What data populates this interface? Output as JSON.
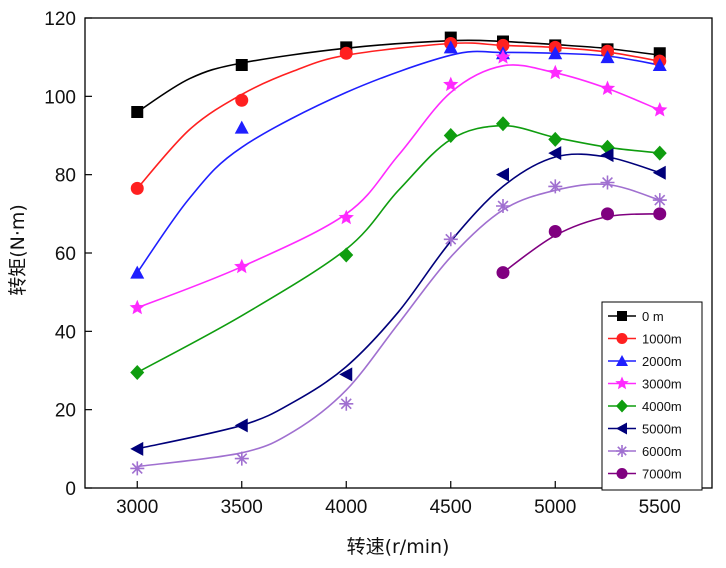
{
  "chart_data": {
    "type": "line",
    "title": "",
    "xlabel": "转速(r/min)",
    "ylabel": "转矩(N·m)",
    "xlim": [
      2750,
      5750
    ],
    "ylim": [
      0,
      120
    ],
    "xticks": [
      3000,
      3500,
      4000,
      4500,
      5000,
      5500
    ],
    "yticks": [
      0,
      20,
      40,
      60,
      80,
      100,
      120
    ],
    "x_tick_labels": [
      "3000",
      "3500",
      "4000",
      "4500",
      "5000",
      "5500"
    ],
    "y_tick_labels": [
      "0",
      "20",
      "40",
      "60",
      "80",
      "100",
      "120"
    ],
    "legend_position": "bottom-right",
    "series": [
      {
        "name": "0 m",
        "color": "#000000",
        "marker": "square",
        "points": [
          [
            3000,
            96
          ],
          [
            3500,
            108
          ],
          [
            4000,
            112.5
          ],
          [
            4500,
            115
          ],
          [
            4750,
            114
          ],
          [
            5000,
            113
          ],
          [
            5250,
            112
          ],
          [
            5500,
            111
          ]
        ],
        "curve": [
          [
            3000,
            96
          ],
          [
            3250,
            104.5
          ],
          [
            3500,
            108.5
          ],
          [
            4000,
            112.3
          ],
          [
            4500,
            114.2
          ],
          [
            4750,
            114
          ],
          [
            5000,
            113.2
          ],
          [
            5250,
            112.2
          ],
          [
            5500,
            110.5
          ]
        ]
      },
      {
        "name": "1000m",
        "color": "#ff2020",
        "marker": "circle",
        "points": [
          [
            3000,
            76.5
          ],
          [
            3500,
            99
          ],
          [
            4000,
            111
          ],
          [
            4500,
            113.5
          ],
          [
            4750,
            113
          ],
          [
            5000,
            112.5
          ],
          [
            5250,
            111.5
          ],
          [
            5500,
            109
          ]
        ],
        "curve": [
          [
            3000,
            76.5
          ],
          [
            3250,
            91.5
          ],
          [
            3500,
            100.5
          ],
          [
            3750,
            106.5
          ],
          [
            4000,
            110.5
          ],
          [
            4500,
            113.5
          ],
          [
            4750,
            113
          ],
          [
            5000,
            112.5
          ],
          [
            5250,
            111.3
          ],
          [
            5500,
            109
          ]
        ]
      },
      {
        "name": "2000m",
        "color": "#1f1fff",
        "marker": "triangle-up",
        "points": [
          [
            3000,
            55
          ],
          [
            3500,
            92
          ],
          [
            4500,
            112.5
          ],
          [
            4750,
            111
          ],
          [
            5000,
            111
          ],
          [
            5250,
            110
          ],
          [
            5500,
            108
          ]
        ],
        "curve": [
          [
            3000,
            55
          ],
          [
            3250,
            74
          ],
          [
            3500,
            87
          ],
          [
            4000,
            101
          ],
          [
            4500,
            110.5
          ],
          [
            4750,
            111.2
          ],
          [
            5000,
            111
          ],
          [
            5250,
            110.3
          ],
          [
            5500,
            108
          ]
        ]
      },
      {
        "name": "3000m",
        "color": "#ff2aff",
        "marker": "star",
        "points": [
          [
            3000,
            46
          ],
          [
            3500,
            56.5
          ],
          [
            4000,
            69
          ],
          [
            4500,
            103
          ],
          [
            4750,
            110
          ],
          [
            5000,
            106
          ],
          [
            5250,
            102
          ],
          [
            5500,
            96.5
          ]
        ],
        "curve": [
          [
            3000,
            46
          ],
          [
            3500,
            56.5
          ],
          [
            4000,
            70
          ],
          [
            4250,
            85
          ],
          [
            4500,
            101
          ],
          [
            4750,
            107.8
          ],
          [
            5000,
            106
          ],
          [
            5250,
            102
          ],
          [
            5500,
            96.5
          ]
        ]
      },
      {
        "name": "4000m",
        "color": "#0f9d0f",
        "marker": "diamond",
        "points": [
          [
            3000,
            29.5
          ],
          [
            4000,
            59.5
          ],
          [
            4500,
            90
          ],
          [
            4750,
            93
          ],
          [
            5000,
            89
          ],
          [
            5250,
            87
          ],
          [
            5500,
            85.5
          ]
        ],
        "curve": [
          [
            3000,
            29.5
          ],
          [
            3500,
            44
          ],
          [
            4000,
            61
          ],
          [
            4250,
            76
          ],
          [
            4500,
            89
          ],
          [
            4750,
            92.5
          ],
          [
            5000,
            89.5
          ],
          [
            5250,
            87
          ],
          [
            5500,
            85.5
          ]
        ]
      },
      {
        "name": "5000m",
        "color": "#00007a",
        "marker": "triangle-left",
        "points": [
          [
            3000,
            10
          ],
          [
            3500,
            16
          ],
          [
            4000,
            29
          ],
          [
            4750,
            80
          ],
          [
            5000,
            85.5
          ],
          [
            5250,
            85
          ],
          [
            5500,
            80.5
          ]
        ],
        "curve": [
          [
            3000,
            10
          ],
          [
            3500,
            16
          ],
          [
            3750,
            22
          ],
          [
            4000,
            31
          ],
          [
            4250,
            45
          ],
          [
            4500,
            63
          ],
          [
            4750,
            77
          ],
          [
            5000,
            84.5
          ],
          [
            5250,
            84.5
          ],
          [
            5500,
            80.5
          ]
        ]
      },
      {
        "name": "6000m",
        "color": "#a070d0",
        "marker": "asterisk",
        "points": [
          [
            3000,
            5
          ],
          [
            3500,
            7.5
          ],
          [
            4000,
            21.5
          ],
          [
            4500,
            63.5
          ],
          [
            4750,
            72
          ],
          [
            5000,
            77
          ],
          [
            5250,
            78
          ],
          [
            5500,
            73.5
          ]
        ],
        "curve": [
          [
            3000,
            5.5
          ],
          [
            3500,
            9
          ],
          [
            3750,
            14.5
          ],
          [
            4000,
            25
          ],
          [
            4250,
            42
          ],
          [
            4500,
            59
          ],
          [
            4750,
            71
          ],
          [
            5000,
            76
          ],
          [
            5250,
            77.5
          ],
          [
            5500,
            73.5
          ]
        ]
      },
      {
        "name": "7000m",
        "color": "#800080",
        "marker": "circle",
        "points": [
          [
            4750,
            55
          ],
          [
            5000,
            65.5
          ],
          [
            5250,
            70
          ],
          [
            5500,
            70
          ]
        ],
        "curve": [
          [
            4750,
            55
          ],
          [
            5000,
            64.5
          ],
          [
            5250,
            69.3
          ],
          [
            5500,
            70
          ]
        ]
      }
    ]
  }
}
